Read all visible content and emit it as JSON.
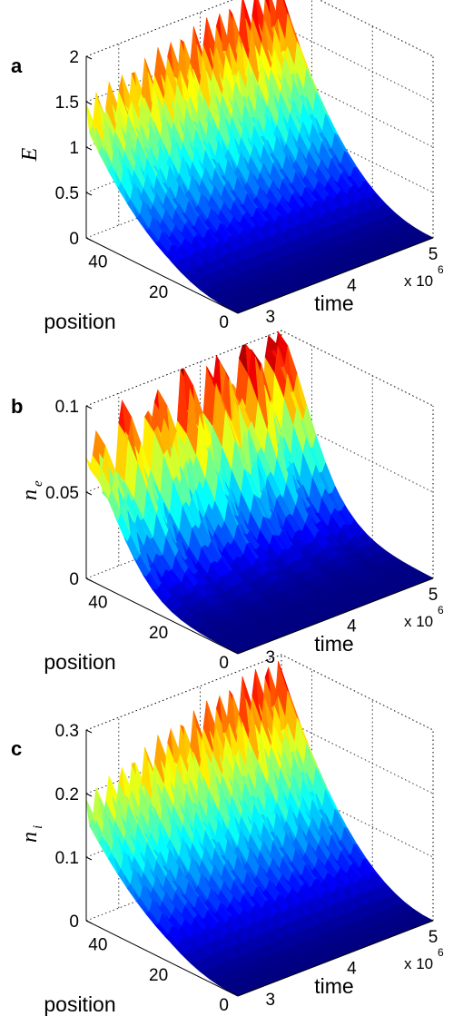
{
  "chart_data": [
    {
      "type": "surface",
      "panel_label": "a",
      "zlabel": "E",
      "zlabel_sub": "",
      "xlabel": "time",
      "ylabel": "position",
      "time_ticks": [
        "3",
        "4",
        "5"
      ],
      "time_range": [
        2.6,
        5.0
      ],
      "time_multiplier": "x 10",
      "time_multiplier_exp": "6",
      "position_ticks": [
        "0",
        "20",
        "40"
      ],
      "position_range": [
        0,
        50
      ],
      "z_ticks": [
        "0",
        "0.5",
        "1",
        "1.5",
        "2"
      ],
      "z_range": [
        0,
        2
      ],
      "peak_series": {
        "time": [
          2.6,
          3.0,
          3.5,
          4.0,
          4.5,
          5.0
        ],
        "max_value": [
          1.55,
          1.65,
          1.8,
          1.9,
          2.0,
          2.05
        ]
      },
      "grid": true,
      "colormap": "jet"
    },
    {
      "type": "surface",
      "panel_label": "b",
      "zlabel": "n",
      "zlabel_sub": "e",
      "xlabel": "time",
      "ylabel": "position",
      "time_ticks": [
        "3",
        "4",
        "5"
      ],
      "time_range": [
        2.6,
        5.0
      ],
      "time_multiplier": "x 10",
      "time_multiplier_exp": "6",
      "position_ticks": [
        "0",
        "20",
        "40"
      ],
      "position_range": [
        0,
        50
      ],
      "z_ticks": [
        "0",
        "0.05",
        "0.1"
      ],
      "z_range": [
        0,
        0.1
      ],
      "peak_series": {
        "time": [
          2.6,
          3.0,
          3.5,
          4.0,
          4.5,
          5.0
        ],
        "max_value": [
          0.07,
          0.08,
          0.085,
          0.09,
          0.1,
          0.095
        ]
      },
      "grid": true,
      "colormap": "jet"
    },
    {
      "type": "surface",
      "panel_label": "c",
      "zlabel": "n",
      "zlabel_sub": "i",
      "xlabel": "time",
      "ylabel": "position",
      "time_ticks": [
        "3",
        "4",
        "5"
      ],
      "time_range": [
        2.6,
        5.0
      ],
      "time_multiplier": "x 10",
      "time_multiplier_exp": "6",
      "position_ticks": [
        "0",
        "20",
        "40"
      ],
      "position_range": [
        0,
        50
      ],
      "z_ticks": [
        "0",
        "0.1",
        "0.2",
        "0.3"
      ],
      "z_range": [
        0,
        0.3
      ],
      "peak_series": {
        "time": [
          2.6,
          3.0,
          3.5,
          4.0,
          4.5,
          5.0
        ],
        "max_value": [
          0.2,
          0.22,
          0.25,
          0.27,
          0.29,
          0.3
        ]
      },
      "grid": true,
      "colormap": "jet"
    }
  ]
}
